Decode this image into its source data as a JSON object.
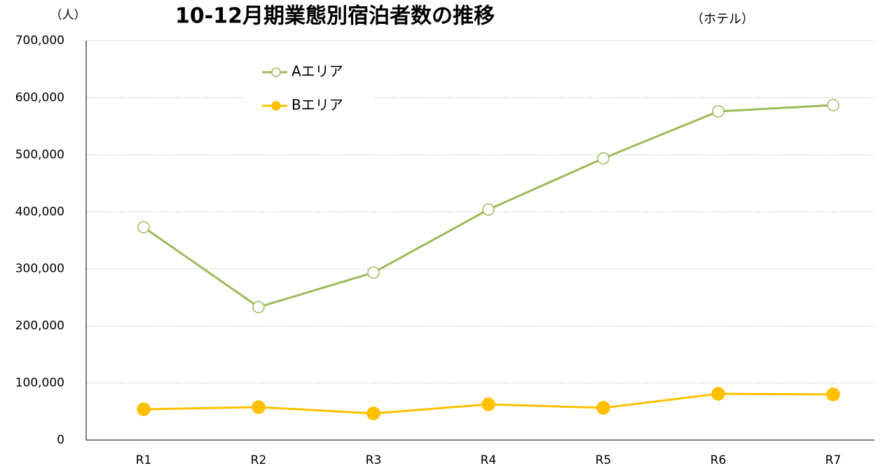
{
  "chart_data": {
    "type": "line",
    "title": "10-12月期業態別宿泊者数の推移",
    "subtitle": "（ホテル）",
    "y_axis_label": "（人）",
    "categories": [
      "R1",
      "R2",
      "R3",
      "R4",
      "R5",
      "R6",
      "R7"
    ],
    "series": [
      {
        "name": "Aエリア",
        "color": "#9bbb59",
        "marker": "open",
        "values": [
          373000,
          233000,
          293500,
          404000,
          493700,
          576000,
          587000
        ]
      },
      {
        "name": "Bエリア",
        "color": "#ffc000",
        "marker": "filled",
        "values": [
          54000,
          57700,
          46700,
          62600,
          56500,
          81000,
          80000
        ]
      }
    ],
    "ylim": [
      0,
      700000
    ],
    "yticks": [
      0,
      {
        "value": 100000,
        "label": "100,000"
      },
      {
        "value": 200000,
        "label": "200,000"
      },
      {
        "value": 300000,
        "label": "300,000"
      },
      {
        "value": 400000,
        "label": "400,000"
      },
      {
        "value": 500000,
        "label": "500,000"
      },
      {
        "value": 600000,
        "label": "600,000"
      },
      {
        "value": 700000,
        "label": "700,000"
      }
    ],
    "grid": true,
    "legend": "upper-left"
  }
}
